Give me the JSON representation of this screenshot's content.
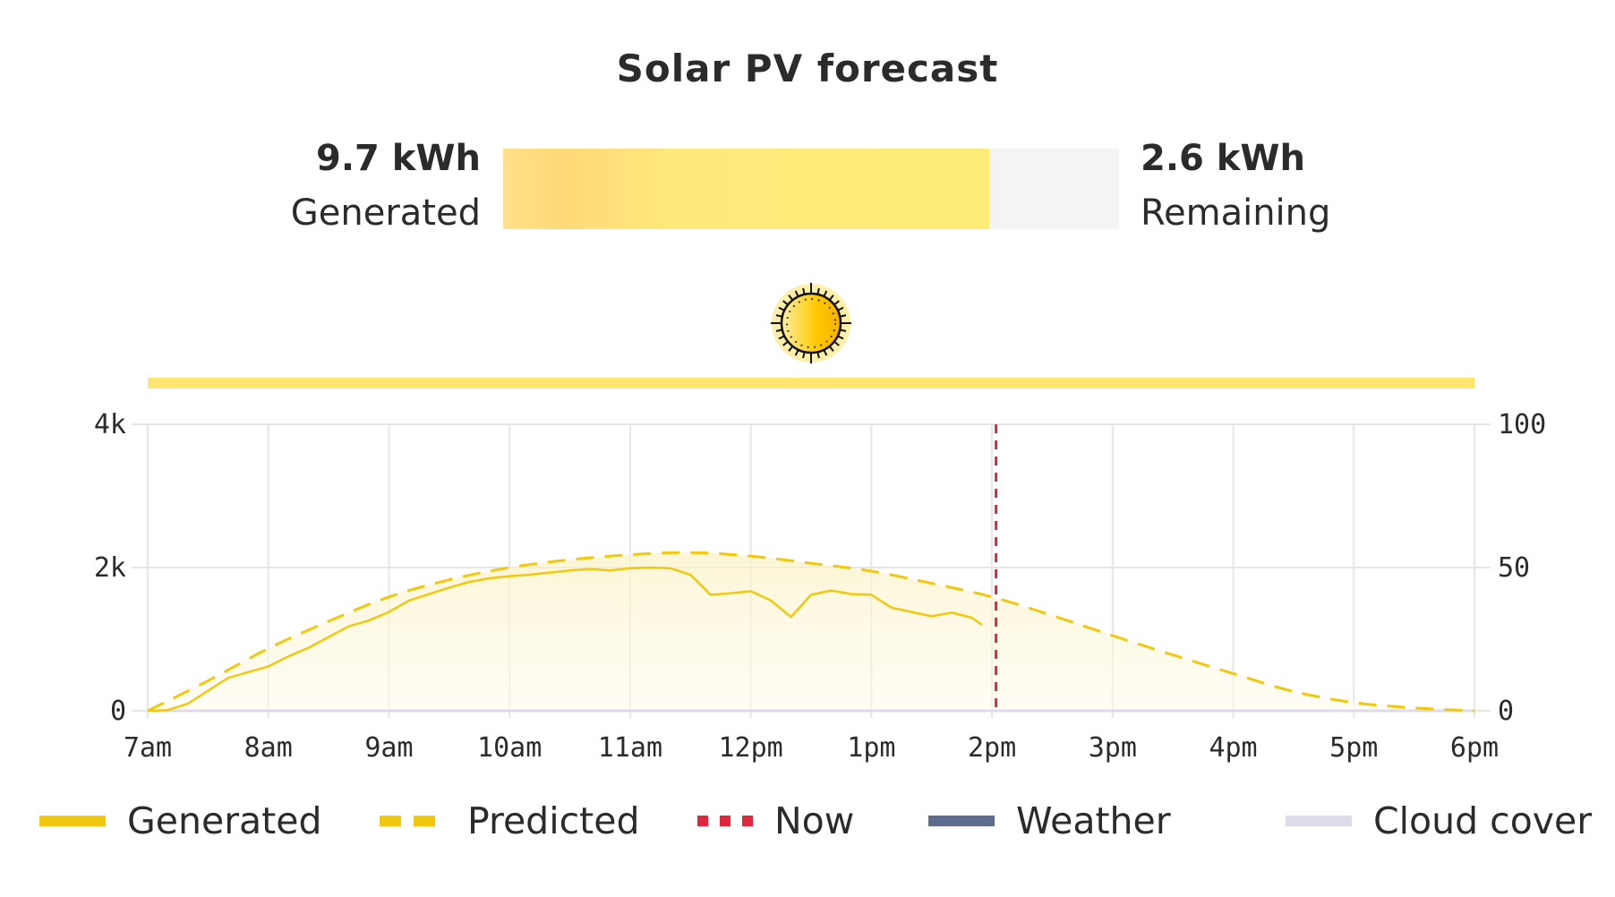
{
  "title": "Solar PV forecast",
  "summary": {
    "generated": {
      "value": "9.7 kWh",
      "label": "Generated",
      "kwh": 9.7
    },
    "remaining": {
      "value": "2.6 kWh",
      "label": "Remaining",
      "kwh": 2.6
    }
  },
  "weather_icon": "sun-icon",
  "colors": {
    "generated": "#f2c80f",
    "predicted": "#f2c80f",
    "now": "#e0283c",
    "weather": "#5f6b8d",
    "cloud": "#dcdbeb",
    "sunny_band": "#ffe46e"
  },
  "chart_data": {
    "type": "line",
    "x_ticks": [
      "7am",
      "8am",
      "9am",
      "10am",
      "11am",
      "12pm",
      "1pm",
      "2pm",
      "3pm",
      "4pm",
      "5pm",
      "6pm"
    ],
    "xlim": [
      "07:00",
      "18:00"
    ],
    "y_left": {
      "ticks": [
        "0",
        "2k",
        "4k"
      ],
      "range": [
        0,
        4000
      ]
    },
    "y_right": {
      "ticks": [
        "0",
        "50",
        "100"
      ],
      "range": [
        0,
        100
      ]
    },
    "grid": true,
    "legend_placement": "bottom",
    "now": "14:02",
    "series": [
      {
        "name": "Generated",
        "style": "solid",
        "x": [
          "07:00",
          "07:10",
          "07:20",
          "07:30",
          "07:40",
          "07:50",
          "08:00",
          "08:10",
          "08:20",
          "08:30",
          "08:40",
          "08:50",
          "09:00",
          "09:10",
          "09:20",
          "09:30",
          "09:40",
          "09:50",
          "10:00",
          "10:10",
          "10:20",
          "10:30",
          "10:40",
          "10:50",
          "11:00",
          "11:10",
          "11:20",
          "11:30",
          "11:40",
          "11:50",
          "12:00",
          "12:10",
          "12:20",
          "12:30",
          "12:40",
          "12:50",
          "13:00",
          "13:10",
          "13:20",
          "13:30",
          "13:40",
          "13:50",
          "13:55"
        ],
        "y": [
          0,
          10,
          100,
          280,
          460,
          540,
          620,
          760,
          880,
          1030,
          1180,
          1260,
          1380,
          1540,
          1630,
          1720,
          1800,
          1850,
          1880,
          1900,
          1930,
          1960,
          1980,
          1960,
          1990,
          2000,
          1990,
          1900,
          1620,
          1640,
          1670,
          1540,
          1310,
          1620,
          1680,
          1630,
          1620,
          1440,
          1380,
          1320,
          1370,
          1300,
          1200
        ]
      },
      {
        "name": "Predicted",
        "style": "dashed",
        "x": [
          "07:00",
          "07:30",
          "08:00",
          "08:30",
          "09:00",
          "09:30",
          "10:00",
          "10:30",
          "11:00",
          "11:30",
          "12:00",
          "12:30",
          "13:00",
          "13:30",
          "14:00",
          "14:30",
          "15:00",
          "15:30",
          "16:00",
          "16:30",
          "17:00",
          "17:30",
          "18:00"
        ],
        "y": [
          0,
          420,
          870,
          1250,
          1590,
          1830,
          2000,
          2110,
          2180,
          2210,
          2160,
          2060,
          1950,
          1780,
          1590,
          1330,
          1050,
          780,
          520,
          270,
          115,
          40,
          0
        ]
      },
      {
        "name": "Cloud cover",
        "axis": "right",
        "x": [
          "07:00",
          "18:00"
        ],
        "y": [
          0,
          0
        ]
      }
    ],
    "weather_band": {
      "condition": "sunny",
      "from": "07:00",
      "to": "18:00"
    }
  },
  "legend": [
    {
      "label": "Generated"
    },
    {
      "label": "Predicted"
    },
    {
      "label": "Now"
    },
    {
      "label": "Weather"
    },
    {
      "label": "Cloud cover"
    }
  ]
}
